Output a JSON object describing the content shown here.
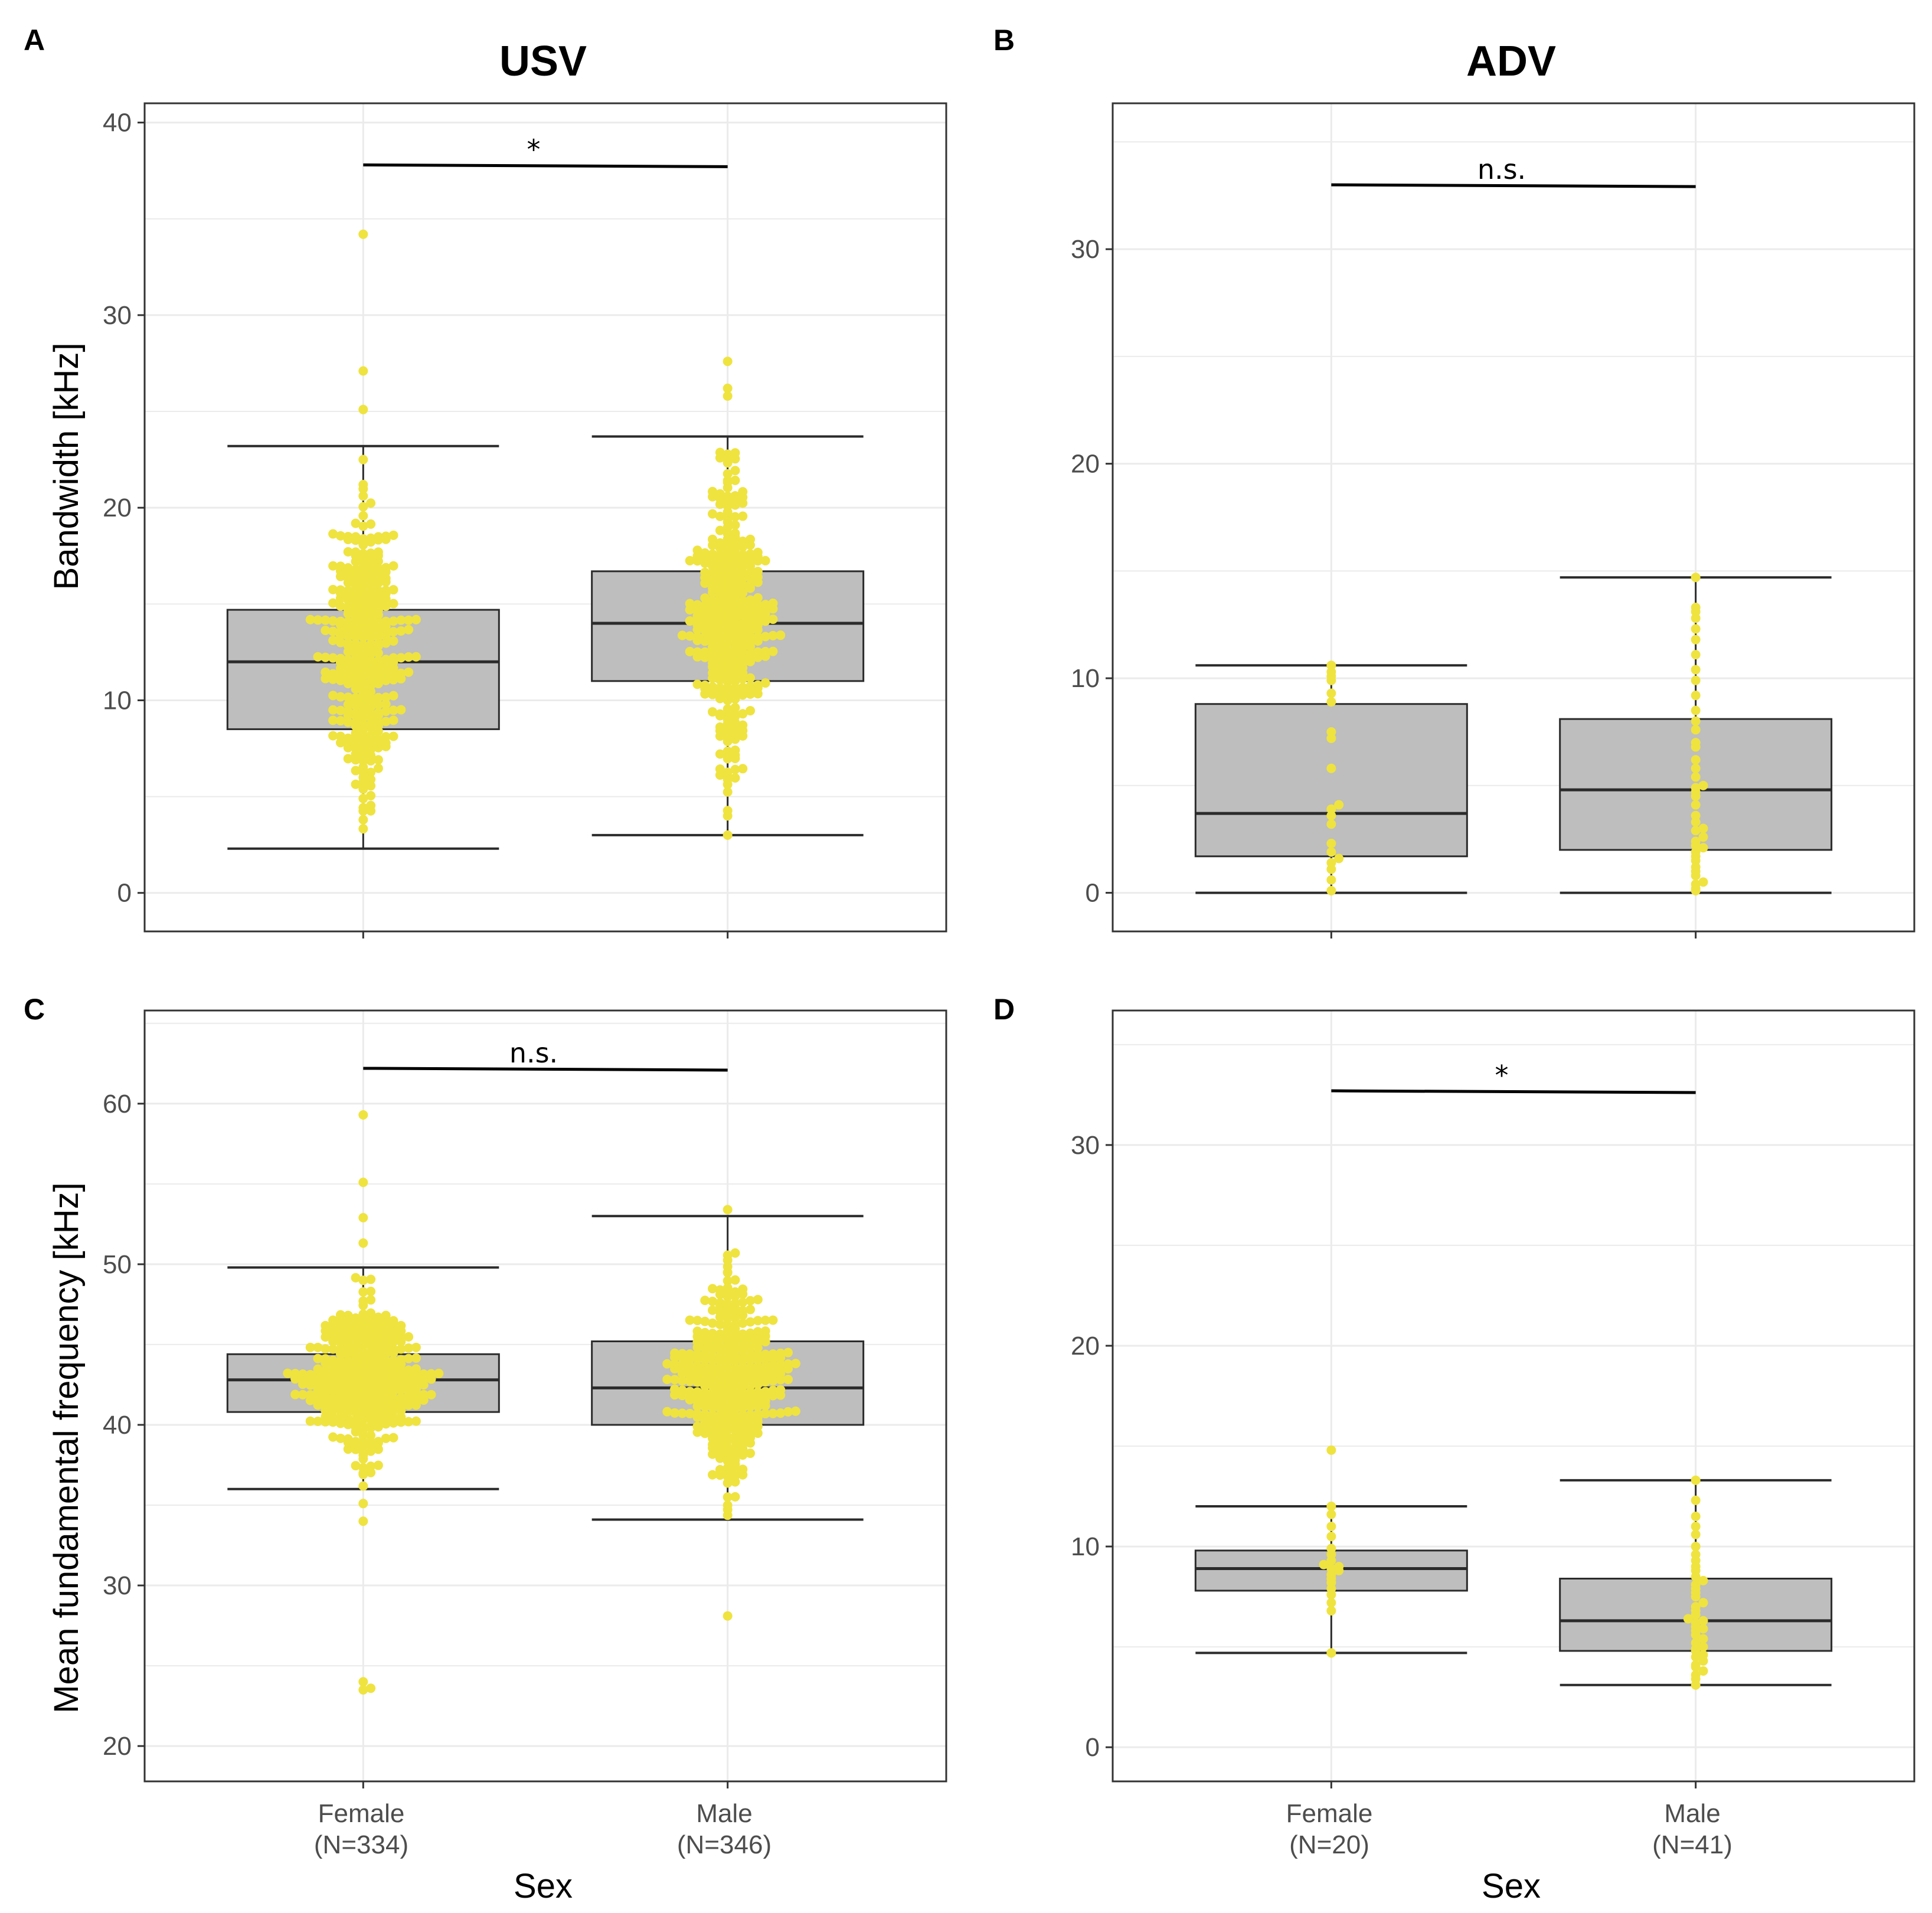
{
  "figure": {
    "column_titles": [
      "USV",
      "ADV"
    ],
    "x_axis_title": "Sex"
  },
  "chart_data": [
    {
      "panel": "A",
      "type": "boxplot",
      "title": "USV",
      "ylabel": "Bandwidth [kHz]",
      "xlabel": "",
      "ylim": [
        -2,
        41
      ],
      "yticks": [
        0,
        10,
        20,
        30,
        40
      ],
      "categories": [
        "Female",
        "Male"
      ],
      "category_counts": [
        "(N=334)",
        "(N=346)"
      ],
      "boxes": [
        {
          "whisker_low": 2.3,
          "q1": 8.5,
          "median": 12.0,
          "q3": 14.7,
          "whisker_high": 23.2
        },
        {
          "whisker_low": 3.0,
          "q1": 11.0,
          "median": 14.0,
          "q3": 16.7,
          "whisker_high": 23.7
        }
      ],
      "points": {
        "n": [
          334,
          346
        ],
        "outliers": [
          [
            34.2,
            27.1,
            25.1
          ],
          [
            27.6,
            26.2,
            25.8
          ]
        ],
        "center": [
          12.5,
          14.0
        ],
        "spread": [
          4.0,
          3.8
        ],
        "range": [
          [
            2.3,
            23.2
          ],
          [
            2.3,
            23.7
          ]
        ]
      },
      "significance": {
        "label": "*",
        "y": 37.8
      }
    },
    {
      "panel": "B",
      "type": "boxplot",
      "title": "ADV",
      "ylabel": "",
      "xlabel": "",
      "ylim": [
        -1.8,
        36.8
      ],
      "yticks": [
        0,
        10,
        20,
        30
      ],
      "categories": [
        "Female",
        "Male"
      ],
      "category_counts": [
        "(N=20)",
        "(N=41)"
      ],
      "boxes": [
        {
          "whisker_low": 0.0,
          "q1": 1.7,
          "median": 3.7,
          "q3": 8.8,
          "whisker_high": 10.6
        },
        {
          "whisker_low": 0.0,
          "q1": 2.0,
          "median": 4.8,
          "q3": 8.1,
          "whisker_high": 14.7
        }
      ],
      "points": {
        "values": [
          [
            0.1,
            0.6,
            1.1,
            1.4,
            1.6,
            1.9,
            2.3,
            3.2,
            3.6,
            3.9,
            4.1,
            5.8,
            7.2,
            7.5,
            8.9,
            9.3,
            9.9,
            10.1,
            10.3,
            10.6
          ],
          [
            0.1,
            0.2,
            0.4,
            0.5,
            0.8,
            1.0,
            1.2,
            1.5,
            1.7,
            1.9,
            2.1,
            2.2,
            2.4,
            2.6,
            2.9,
            3.0,
            3.3,
            3.6,
            4.1,
            4.5,
            4.7,
            4.9,
            5.0,
            5.4,
            5.8,
            6.2,
            6.8,
            7.0,
            7.6,
            8.0,
            8.5,
            9.2,
            9.9,
            10.4,
            11.1,
            11.8,
            12.3,
            12.8,
            13.1,
            13.3,
            14.7
          ]
        ]
      },
      "significance": {
        "label": "n.s.",
        "y": 33.0
      }
    },
    {
      "panel": "C",
      "type": "boxplot",
      "title": "",
      "ylabel": "Mean fundamental frequency [kHz]",
      "xlabel": "Sex",
      "ylim": [
        17.8,
        65.8
      ],
      "yticks": [
        20,
        30,
        40,
        50,
        60
      ],
      "categories": [
        "Female",
        "Male"
      ],
      "category_counts": [
        "(N=334)",
        "(N=346)"
      ],
      "boxes": [
        {
          "whisker_low": 36.0,
          "q1": 40.8,
          "median": 42.8,
          "q3": 44.4,
          "whisker_high": 49.8
        },
        {
          "whisker_low": 34.1,
          "q1": 40.0,
          "median": 42.3,
          "q3": 45.2,
          "whisker_high": 53.0
        }
      ],
      "points": {
        "n": [
          334,
          346
        ],
        "outliers": [
          [
            59.3,
            55.1,
            52.9,
            34.0,
            35.1,
            24.0,
            23.6,
            23.5
          ],
          [
            53.4,
            28.1
          ]
        ],
        "center": [
          42.8,
          42.6
        ],
        "spread": [
          2.6,
          3.4
        ],
        "range": [
          [
            36.0,
            51.5
          ],
          [
            34.1,
            52.0
          ]
        ]
      },
      "significance": {
        "label": "n.s.",
        "y": 62.2
      }
    },
    {
      "panel": "D",
      "type": "boxplot",
      "title": "",
      "ylabel": "",
      "xlabel": "Sex",
      "ylim": [
        -1.7,
        36.7
      ],
      "yticks": [
        0,
        10,
        20,
        30
      ],
      "categories": [
        "Female",
        "Male"
      ],
      "category_counts": [
        "(N=20)",
        "(N=41)"
      ],
      "boxes": [
        {
          "whisker_low": 4.7,
          "q1": 7.8,
          "median": 8.9,
          "q3": 9.8,
          "whisker_high": 12.0
        },
        {
          "whisker_low": 3.1,
          "q1": 4.8,
          "median": 6.3,
          "q3": 8.4,
          "whisker_high": 13.3
        }
      ],
      "points": {
        "values": [
          [
            4.7,
            6.8,
            7.2,
            7.6,
            7.9,
            8.2,
            8.4,
            8.6,
            8.8,
            8.9,
            9.0,
            9.1,
            9.3,
            9.6,
            9.9,
            10.5,
            11.0,
            11.6,
            12.0,
            14.8
          ],
          [
            3.1,
            3.4,
            3.6,
            3.8,
            4.0,
            4.1,
            4.3,
            4.5,
            4.6,
            4.8,
            4.9,
            5.0,
            5.2,
            5.4,
            5.6,
            5.8,
            5.9,
            6.0,
            6.2,
            6.3,
            6.4,
            6.6,
            6.8,
            7.0,
            7.2,
            7.5,
            7.7,
            7.9,
            8.1,
            8.3,
            8.5,
            8.8,
            9.0,
            9.3,
            9.6,
            10.0,
            10.6,
            11.0,
            11.5,
            12.3,
            13.3
          ]
        ]
      },
      "significance": {
        "label": "*",
        "y": 32.7
      }
    }
  ],
  "colors": {
    "points": "#efe33f",
    "box_fill": "#bebebe",
    "box_stroke": "#2b2b2b",
    "grid": "#ebebeb",
    "panel_border": "#333333",
    "tick_text": "#4d4d4d"
  }
}
